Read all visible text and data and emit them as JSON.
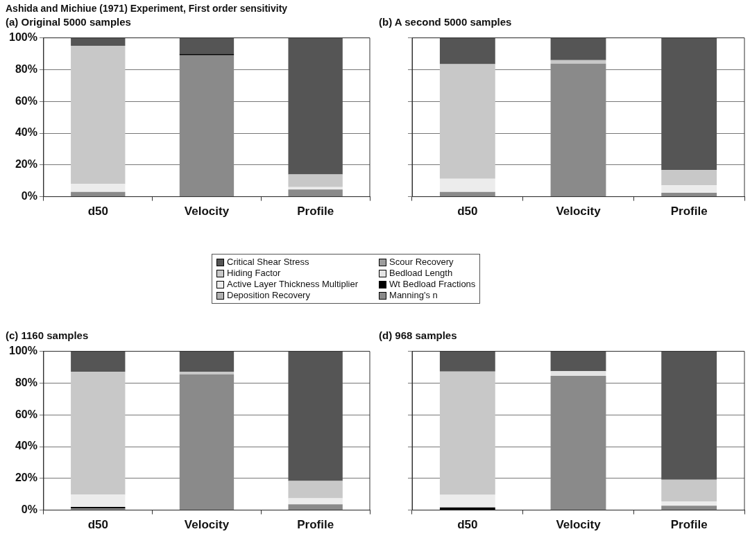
{
  "chart_data": [
    {
      "type": "bar",
      "title": "Ashida and Michiue (1971) Experiment, First order sensitivity",
      "subtitle": "(a) Original 5000 samples",
      "categories": [
        "d50",
        "Velocity",
        "Profile"
      ],
      "stacked": true,
      "ylim": [
        0,
        100
      ],
      "yticks": [
        {
          "value": 0,
          "label": "0%"
        },
        {
          "value": 20,
          "label": "20%"
        },
        {
          "value": 40,
          "label": "40%"
        },
        {
          "value": 60,
          "label": "60%"
        },
        {
          "value": 80,
          "label": "80%"
        },
        {
          "value": 100,
          "label": "100%"
        }
      ],
      "grid": "y",
      "legend": "bottom",
      "series": [
        {
          "name": "Manning's n",
          "color": "#8a8a8a",
          "values": [
            3,
            89,
            4.5
          ]
        },
        {
          "name": "Deposition Recovery",
          "color": "#b0b0b0",
          "values": [
            0,
            0,
            0
          ]
        },
        {
          "name": "Wt Bedload Fractions",
          "color": "#000000",
          "values": [
            0,
            1,
            0
          ]
        },
        {
          "name": "Active Layer Thickness Multiplier",
          "color": "#ececec",
          "values": [
            5,
            0,
            1.5
          ]
        },
        {
          "name": "Bedload Length",
          "color": "#e4e4e4",
          "values": [
            0,
            0,
            0
          ]
        },
        {
          "name": "Hiding Factor",
          "color": "#c8c8c8",
          "values": [
            87,
            0,
            8
          ]
        },
        {
          "name": "Scour Recovery",
          "color": "#9c9c9c",
          "values": [
            0,
            0,
            0
          ]
        },
        {
          "name": "Critical Shear Stress",
          "color": "#555555",
          "values": [
            5,
            10,
            86
          ]
        }
      ]
    },
    {
      "type": "bar",
      "title": "(b) A second 5000 samples",
      "categories": [
        "d50",
        "Velocity",
        "Profile"
      ],
      "stacked": true,
      "ylim": [
        0,
        100
      ],
      "yticks": [
        {
          "value": 0,
          "label": null
        },
        {
          "value": 20,
          "label": null
        },
        {
          "value": 40,
          "label": null
        },
        {
          "value": 60,
          "label": null
        },
        {
          "value": 80,
          "label": null
        },
        {
          "value": 100,
          "label": null
        }
      ],
      "grid": "y",
      "tick_labels": "x",
      "series": [
        {
          "color": "#8a8a8a",
          "values": [
            3,
            83.8,
            2.4
          ]
        },
        {
          "color": "#b0b0b0",
          "values": [
            0,
            0,
            0
          ]
        },
        {
          "color": "#000000",
          "values": [
            0,
            0,
            0
          ]
        },
        {
          "color": "#ececec",
          "values": [
            8.3,
            0,
            4.7
          ]
        },
        {
          "color": "#e4e4e4",
          "values": [
            0,
            0,
            0
          ]
        },
        {
          "color": "#c8c8c8",
          "values": [
            72.2,
            2.2,
            9.7
          ]
        },
        {
          "color": "#9c9c9c",
          "values": [
            0,
            0,
            0
          ]
        },
        {
          "color": "#555555",
          "values": [
            16.5,
            14,
            83.2
          ]
        }
      ]
    },
    {
      "type": "bar",
      "title": "(c) 1160 samples",
      "categories": [
        "d50",
        "Velocity",
        "Profile"
      ],
      "stacked": true,
      "ylim": [
        0,
        100
      ],
      "yticks": [
        {
          "value": 0,
          "label": "0%"
        },
        {
          "value": 20,
          "label": "20%"
        },
        {
          "value": 40,
          "label": "40%"
        },
        {
          "value": 60,
          "label": "60%"
        },
        {
          "value": 80,
          "label": "80%"
        },
        {
          "value": 100,
          "label": "100%"
        }
      ],
      "grid": "y",
      "series": [
        {
          "color": "#8a8a8a",
          "values": [
            1,
            85.4,
            3.7
          ]
        },
        {
          "color": "#b0b0b0",
          "values": [
            0,
            0,
            0
          ]
        },
        {
          "color": "#000000",
          "values": [
            1,
            0,
            0
          ]
        },
        {
          "color": "#ececec",
          "values": [
            7.8,
            0,
            3.8
          ]
        },
        {
          "color": "#e4e4e4",
          "values": [
            0,
            0,
            0
          ]
        },
        {
          "color": "#c8c8c8",
          "values": [
            77.2,
            1.6,
            10.9
          ]
        },
        {
          "color": "#9c9c9c",
          "values": [
            0,
            0,
            0
          ]
        },
        {
          "color": "#555555",
          "values": [
            13,
            13,
            81.6
          ]
        }
      ]
    },
    {
      "type": "bar",
      "title": "(d) 968 samples",
      "categories": [
        "d50",
        "Velocity",
        "Profile"
      ],
      "stacked": true,
      "ylim": [
        0,
        100
      ],
      "yticks": [
        {
          "value": 0,
          "label": null
        },
        {
          "value": 20,
          "label": null
        },
        {
          "value": 40,
          "label": null
        },
        {
          "value": 60,
          "label": null
        },
        {
          "value": 80,
          "label": null
        },
        {
          "value": 100,
          "label": null
        }
      ],
      "grid": "y",
      "tick_labels": "x",
      "series": [
        {
          "color": "#8a8a8a",
          "values": [
            0,
            84.5,
            2.8
          ]
        },
        {
          "color": "#b0b0b0",
          "values": [
            0,
            0,
            0
          ]
        },
        {
          "color": "#000000",
          "values": [
            1.7,
            0,
            0
          ]
        },
        {
          "color": "#ececec",
          "values": [
            8,
            0,
            2.7
          ]
        },
        {
          "color": "#e4e4e4",
          "values": [
            0,
            3,
            0
          ]
        },
        {
          "color": "#c8c8c8",
          "values": [
            77.6,
            0,
            13.6
          ]
        },
        {
          "color": "#9c9c9c",
          "values": [
            0,
            0,
            0
          ]
        },
        {
          "color": "#555555",
          "values": [
            12.7,
            12.5,
            80.9
          ]
        }
      ]
    }
  ]
}
